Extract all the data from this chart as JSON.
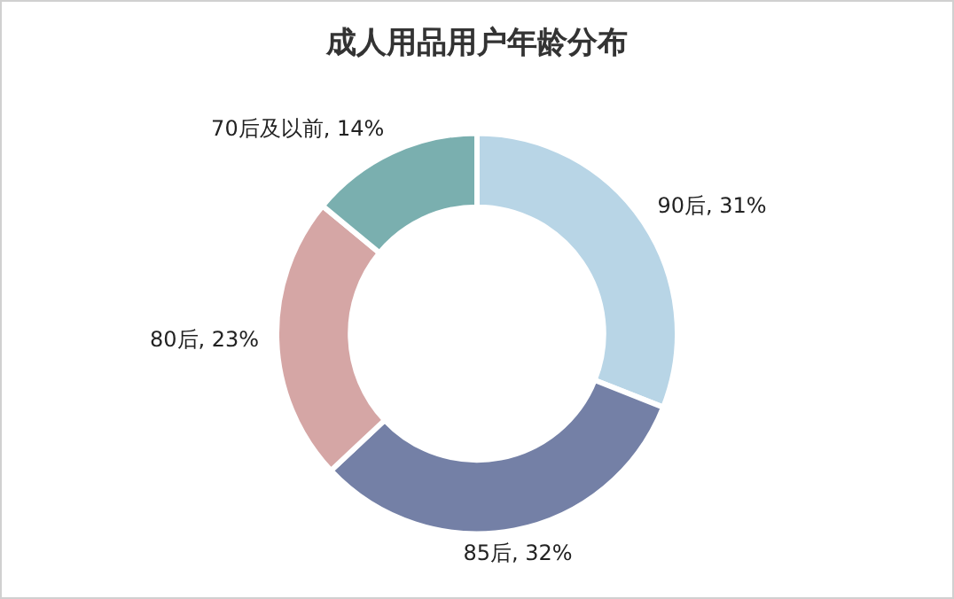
{
  "chart_data": {
    "type": "donut",
    "title": "成人用品用户年龄分布",
    "categories": [
      "90后",
      "85后",
      "80后",
      "70后及以前"
    ],
    "values": [
      31,
      32,
      23,
      14
    ],
    "colors": [
      "#b8d5e6",
      "#7480a6",
      "#d5a6a5",
      "#7aafaf"
    ],
    "value_labels": [
      ", 31%",
      ", 32%",
      ", 23%",
      ", 14%"
    ],
    "legend": false
  }
}
